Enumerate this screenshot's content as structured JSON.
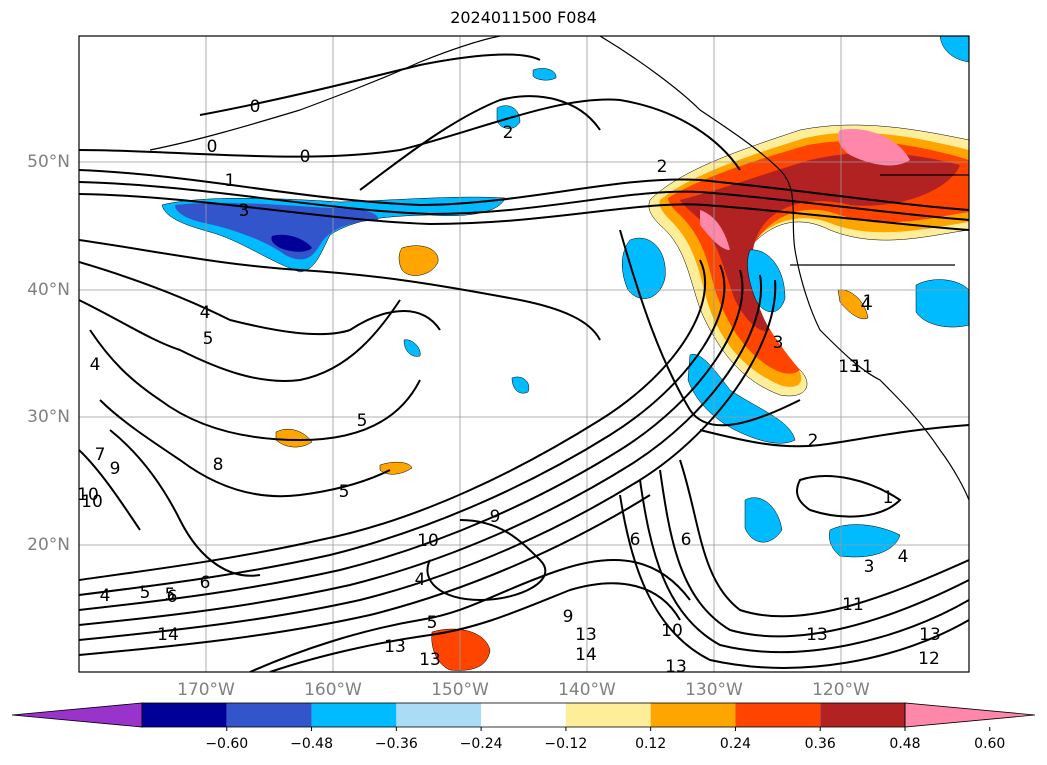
{
  "title": "2024011500 F084",
  "lat_labels": [
    "50°N",
    "40°N",
    "30°N",
    "20°N"
  ],
  "lon_labels": [
    "170°W",
    "160°W",
    "150°W",
    "140°W",
    "130°W",
    "120°W"
  ],
  "colorbar": {
    "colors": [
      "#9933cc",
      "#000099",
      "#3355cc",
      "#00bbff",
      "#aaddf5",
      "#ffffff",
      "#ffee99",
      "#ffa500",
      "#ff4400",
      "#b22222",
      "#ff88aa"
    ],
    "tick_labels": [
      "−0.60",
      "−0.48",
      "−0.36",
      "−0.24",
      "−0.12",
      "0.12",
      "0.24",
      "0.36",
      "0.48",
      "0.60"
    ]
  },
  "contour_labels": [
    "0",
    "0",
    "0",
    "1",
    "2",
    "2",
    "3",
    "4",
    "5",
    "4",
    "5",
    "5",
    "7",
    "9",
    "10",
    "8",
    "4",
    "5",
    "6",
    "10",
    "9",
    "1",
    "4",
    "5",
    "6",
    "6",
    "2",
    "1",
    "3",
    "3",
    "4",
    "13",
    "10",
    "13",
    "11",
    "13",
    "14",
    "13",
    "13",
    "12",
    "14",
    "13",
    "13",
    "9",
    "4",
    "5",
    "6",
    "10",
    "11"
  ],
  "colors": {
    "contour": "#000000",
    "grid": "#999999",
    "axis_text": "#808080"
  }
}
